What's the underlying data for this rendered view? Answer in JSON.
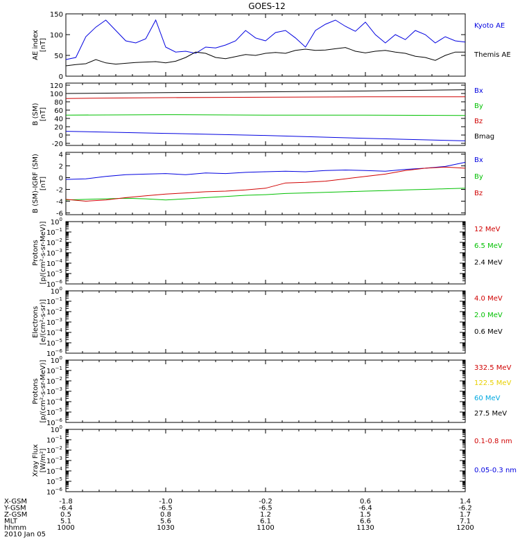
{
  "title": "GOES-12",
  "colors": {
    "black": "#000000",
    "blue": "#0000e0",
    "red": "#d00000",
    "green": "#00c000",
    "yellow": "#e8d000",
    "cyan": "#00a8e0"
  },
  "chart_data": [
    {
      "type": "line",
      "ylabel": [
        "AE index",
        "[nT]"
      ],
      "ylim": [
        0,
        150
      ],
      "yticks": [
        "0",
        "50",
        "100",
        "150"
      ],
      "tick_values": [
        0,
        50,
        100,
        150
      ],
      "x_hours": [
        10.0,
        10.05,
        10.1,
        10.15,
        10.2,
        10.25,
        10.3,
        10.35,
        10.4,
        10.45,
        10.5,
        10.55,
        10.6,
        10.65,
        10.7,
        10.75,
        10.8,
        10.85,
        10.9,
        10.95,
        11.0,
        11.05,
        11.1,
        11.15,
        11.2,
        11.25,
        11.3,
        11.35,
        11.4,
        11.45,
        11.5,
        11.55,
        11.6,
        11.65,
        11.7,
        11.75,
        11.8,
        11.85,
        11.9,
        11.95,
        12.0
      ],
      "series": [
        {
          "name": "Kyoto AE",
          "color": "blue",
          "values": [
            40,
            45,
            95,
            118,
            135,
            110,
            85,
            80,
            90,
            135,
            70,
            58,
            60,
            55,
            70,
            68,
            75,
            85,
            110,
            92,
            85,
            105,
            110,
            92,
            70,
            110,
            125,
            135,
            120,
            108,
            130,
            100,
            80,
            100,
            88,
            110,
            100,
            80,
            95,
            85,
            82
          ]
        },
        {
          "name": "Themis AE",
          "color": "black",
          "values": [
            25,
            28,
            30,
            40,
            32,
            29,
            31,
            33,
            34,
            35,
            32,
            36,
            45,
            58,
            55,
            45,
            42,
            47,
            52,
            50,
            55,
            57,
            55,
            62,
            65,
            62,
            63,
            66,
            69,
            60,
            56,
            60,
            62,
            58,
            55,
            48,
            45,
            38,
            50,
            58,
            58
          ]
        }
      ]
    },
    {
      "type": "line",
      "ylabel": [
        "B (SM)",
        "[nT]"
      ],
      "ylim": [
        -25,
        125
      ],
      "yticks": [
        "-20",
        "0",
        "20",
        "40",
        "60",
        "80",
        "100",
        "120"
      ],
      "tick_values": [
        -20,
        0,
        20,
        40,
        60,
        80,
        100,
        120
      ],
      "x_hours": [
        10.0,
        10.5,
        11.0,
        11.5,
        12.0
      ],
      "series": [
        {
          "name": "Bx",
          "color": "blue",
          "values": [
            9,
            4,
            -1,
            -8,
            -14
          ]
        },
        {
          "name": "By",
          "color": "green",
          "values": [
            48,
            49,
            48,
            48,
            47
          ]
        },
        {
          "name": "Bz",
          "color": "red",
          "values": [
            88,
            90,
            91,
            92,
            92
          ]
        },
        {
          "name": "Bmag",
          "color": "black",
          "values": [
            100,
            102,
            104,
            106,
            109
          ]
        }
      ]
    },
    {
      "type": "line",
      "ylabel": [
        "B (SM)-IGRF (SM)",
        "[nT]"
      ],
      "ylim": [
        -6.3,
        4.3
      ],
      "yticks": [
        "-6",
        "-4",
        "-2",
        "0",
        "2",
        "4"
      ],
      "tick_values": [
        -6,
        -4,
        -2,
        0,
        2,
        4
      ],
      "x_hours": [
        10.0,
        10.1,
        10.2,
        10.3,
        10.4,
        10.5,
        10.6,
        10.7,
        10.8,
        10.9,
        11.0,
        11.1,
        11.2,
        11.3,
        11.4,
        11.5,
        11.6,
        11.7,
        11.8,
        11.9,
        12.0
      ],
      "series": [
        {
          "name": "Bx",
          "color": "blue",
          "values": [
            -0.3,
            -0.2,
            0.2,
            0.5,
            0.6,
            0.7,
            0.5,
            0.8,
            0.7,
            0.9,
            1.0,
            1.1,
            1.0,
            1.2,
            1.3,
            1.2,
            1.1,
            1.4,
            1.6,
            1.9,
            2.6
          ]
        },
        {
          "name": "By",
          "color": "green",
          "values": [
            -3.8,
            -3.7,
            -3.6,
            -3.5,
            -3.6,
            -3.8,
            -3.6,
            -3.4,
            -3.2,
            -3.0,
            -2.9,
            -2.7,
            -2.6,
            -2.5,
            -2.4,
            -2.3,
            -2.2,
            -2.1,
            -2.0,
            -1.9,
            -1.8
          ]
        },
        {
          "name": "Bz",
          "color": "red",
          "values": [
            -3.7,
            -4.0,
            -3.8,
            -3.4,
            -3.1,
            -2.8,
            -2.6,
            -2.4,
            -2.3,
            -2.1,
            -1.8,
            -0.9,
            -0.8,
            -0.6,
            -0.2,
            0.2,
            0.6,
            1.2,
            1.6,
            1.8,
            1.6
          ]
        }
      ]
    },
    {
      "type": "line",
      "ylabel": [
        "Protons",
        "[p/(cm²-s-sr-MeV)]"
      ],
      "ylim": [
        -6,
        0
      ],
      "log": true,
      "legend": [
        {
          "name": "12 MeV",
          "color": "red"
        },
        {
          "name": "6.5 MeV",
          "color": "green"
        },
        {
          "name": "2.4 MeV",
          "color": "black"
        }
      ]
    },
    {
      "type": "line",
      "ylabel": [
        "Electrons",
        "[e/(cm²-s-sr)]"
      ],
      "ylim": [
        -6,
        0
      ],
      "log": true,
      "legend": [
        {
          "name": "4.0 MeV",
          "color": "red"
        },
        {
          "name": "2.0 MeV",
          "color": "green"
        },
        {
          "name": "0.6 MeV",
          "color": "black"
        }
      ]
    },
    {
      "type": "line",
      "ylabel": [
        "Protons",
        "[p/(cm²-s-sr-MeV)]"
      ],
      "ylim": [
        -6,
        0
      ],
      "log": true,
      "legend": [
        {
          "name": "332.5 MeV",
          "color": "red"
        },
        {
          "name": "122.5 MeV",
          "color": "yellow"
        },
        {
          "name": "60 MeV",
          "color": "cyan"
        },
        {
          "name": "27.5 MeV",
          "color": "black"
        }
      ]
    },
    {
      "type": "line",
      "ylabel": [
        "Xray Flux",
        "[W/m²]"
      ],
      "ylim": [
        -6,
        0
      ],
      "log": true,
      "legend": [
        {
          "name": "0.1-0.8 nm",
          "color": "red"
        },
        {
          "name": "0.05-0.3 nm",
          "color": "blue"
        }
      ]
    }
  ],
  "x_axis": {
    "labels": [
      "X-GSM",
      "Y-GSM",
      "Z-GSM",
      "MLT",
      "hhmm",
      "2010 Jan 05"
    ],
    "ticks": [
      {
        "hour": 10.0,
        "values": [
          "-1.8",
          "-6.4",
          "0.5",
          "5.1",
          "1000"
        ]
      },
      {
        "hour": 10.5,
        "values": [
          "-1.0",
          "-6.5",
          "0.8",
          "5.6",
          "1030"
        ]
      },
      {
        "hour": 11.0,
        "values": [
          "-0.2",
          "-6.5",
          "1.2",
          "6.1",
          "1100"
        ]
      },
      {
        "hour": 11.5,
        "values": [
          "0.6",
          "-6.4",
          "1.5",
          "6.6",
          "1130"
        ]
      },
      {
        "hour": 12.0,
        "values": [
          "1.4",
          "-6.2",
          "1.7",
          "7.1",
          "1200"
        ]
      }
    ]
  }
}
